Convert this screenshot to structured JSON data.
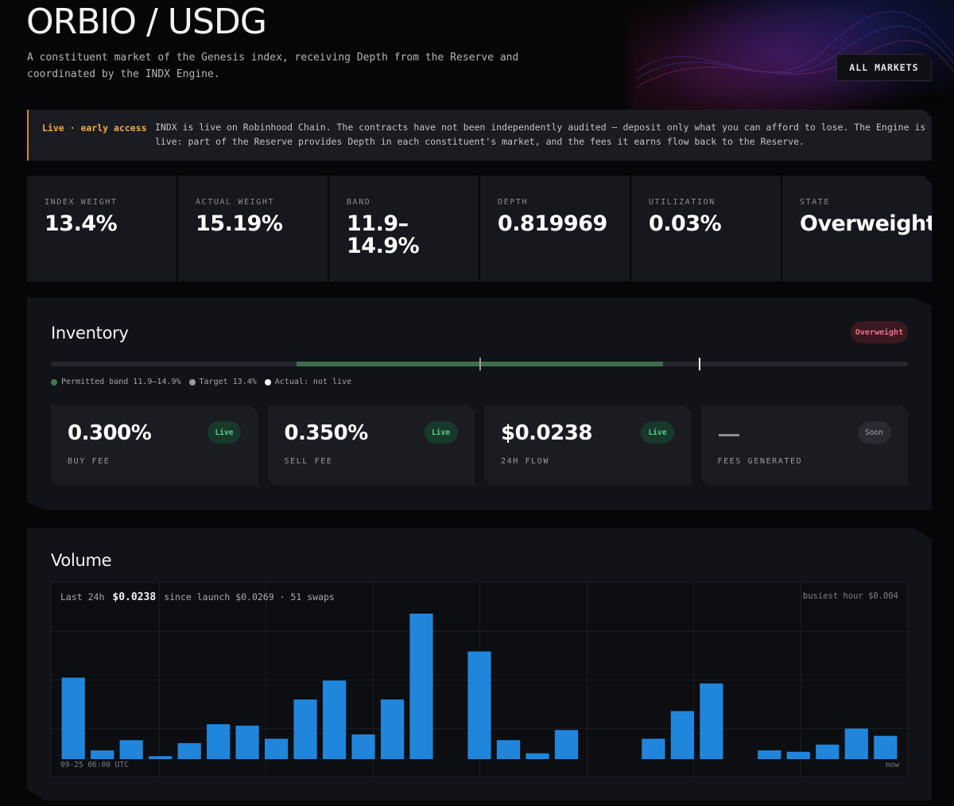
{
  "header": {
    "title": "ORBIO / USDG",
    "subtitle": "A constituent market of the Genesis index, receiving Depth from the Reserve and coordinated by the INDX Engine.",
    "all_markets_label": "ALL MARKETS"
  },
  "banner": {
    "tag": "Live · early access",
    "message": "INDX is live on Robinhood Chain. The contracts have not been independently audited — deposit only what you can afford to lose. The Engine is live: part of the Reserve provides Depth in each constituent's market, and the fees it earns flow back to the Reserve."
  },
  "stats": [
    {
      "label": "INDEX WEIGHT",
      "value": "13.4%"
    },
    {
      "label": "ACTUAL WEIGHT",
      "value": "15.19%"
    },
    {
      "label": "BAND",
      "value": "11.9–14.9%"
    },
    {
      "label": "DEPTH",
      "value": "0.819969"
    },
    {
      "label": "UTILIZATION",
      "value": "0.03%"
    },
    {
      "label": "STATE",
      "value": "Overweight"
    }
  ],
  "inventory": {
    "title": "Inventory",
    "state_badge": "Overweight",
    "legend": {
      "band": "Permitted band 11.9–14.9%",
      "target": "Target 13.4%",
      "actual": "Actual: not live"
    },
    "cards": [
      {
        "value": "0.300%",
        "label": "BUY FEE",
        "pill": "Live"
      },
      {
        "value": "0.350%",
        "label": "SELL FEE",
        "pill": "Live"
      },
      {
        "value": "$0.0238",
        "label": "24H FLOW",
        "pill": "Live"
      },
      {
        "value": "",
        "label": "FEES GENERATED",
        "pill": "Soon"
      }
    ]
  },
  "volume": {
    "title": "Volume",
    "last_label": "Last 24h",
    "last_value": "$0.0238",
    "since_launch": "since launch $0.0269 · 51 swaps",
    "busiest": "busiest hour $0.004",
    "axis_start": "09-25 06:00 UTC",
    "axis_end": "now"
  },
  "colors": {
    "bar": "#1f86dc",
    "accent_warning": "#f0a94a",
    "live_green": "#4fd48a",
    "overweight_pink": "#ee6e8a"
  },
  "chart_data": {
    "type": "bar",
    "hourly_relative_values": [
      0.56,
      0.06,
      0.13,
      0.02,
      0.11,
      0.24,
      0.23,
      0.14,
      0.41,
      0.54,
      0.17,
      0.41,
      1.0,
      0,
      0.74,
      0.13,
      0.04,
      0.2,
      0,
      0,
      0.14,
      0.33,
      0.52,
      0,
      0.06,
      0.05,
      0.1,
      0.21,
      0.16
    ]
  }
}
